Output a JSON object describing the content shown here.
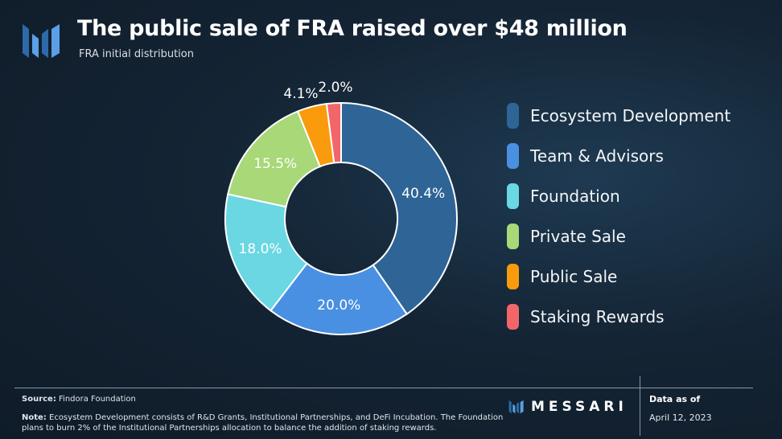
{
  "header": {
    "title": "The public sale of FRA raised over $48 million",
    "subtitle": "FRA initial distribution"
  },
  "chart_data": {
    "type": "pie",
    "variant": "donut",
    "title": "The public sale of FRA raised over $48 million",
    "subtitle": "FRA initial distribution",
    "slices": [
      {
        "label": "Ecosystem Development",
        "value": 40.4,
        "display": "40.4%",
        "color": "#2e6496"
      },
      {
        "label": "Team & Advisors",
        "value": 20.0,
        "display": "20.0%",
        "color": "#4a90e2"
      },
      {
        "label": "Foundation",
        "value": 18.0,
        "display": "18.0%",
        "color": "#6ad7e3"
      },
      {
        "label": "Private Sale",
        "value": 15.5,
        "display": "15.5%",
        "color": "#a8d878"
      },
      {
        "label": "Public Sale",
        "value": 4.1,
        "display": "4.1%",
        "color": "#f99b0c"
      },
      {
        "label": "Staking Rewards",
        "value": 2.0,
        "display": "2.0%",
        "color": "#f2666a"
      }
    ],
    "legend_position": "right"
  },
  "footer": {
    "source_label": "Source:",
    "source_text": "Findora Foundation",
    "note_label": "Note:",
    "note_text": "Ecosystem Development consists of R&D Grants, Institutional Partnerships, and DeFi Incubation. The Foundation plans to burn 2% of the Institutional Partnerships allocation to balance the addition of staking rewards.",
    "brand": "MESSARI",
    "data_as_of_label": "Data as of",
    "data_as_of_date": "April 12, 2023"
  },
  "colors": {
    "background": "#142434",
    "logo": "#4a90e2"
  },
  "icons": {
    "logo": "messari-logo-icon"
  }
}
